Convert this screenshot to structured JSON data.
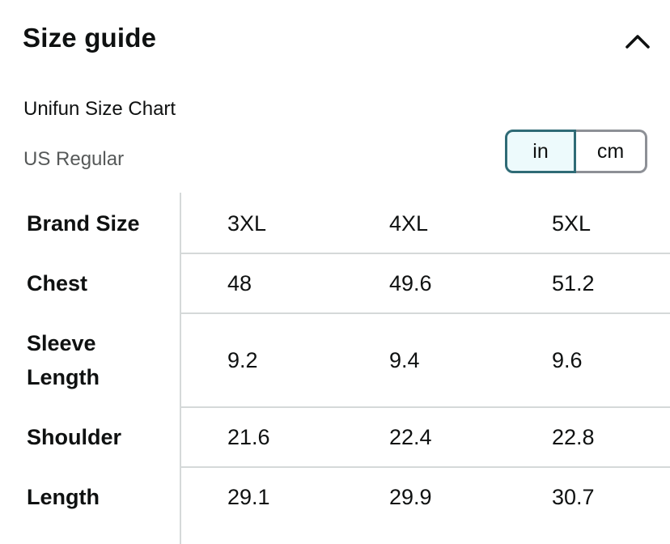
{
  "header": {
    "title": "Size guide"
  },
  "chart": {
    "name": "Unifun Size Chart",
    "region": "US Regular"
  },
  "unit_toggle": {
    "in_label": "in",
    "cm_label": "cm",
    "selected": "in"
  },
  "table": {
    "header_label": "Brand Size",
    "sizes": [
      "3XL",
      "4XL",
      "5XL"
    ],
    "rows": [
      {
        "label": "Chest",
        "values": [
          "48",
          "49.6",
          "51.2"
        ]
      },
      {
        "label": "Sleeve\nLength",
        "values": [
          "9.2",
          "9.4",
          "9.6"
        ]
      },
      {
        "label": "Shoulder",
        "values": [
          "21.6",
          "22.4",
          "22.8"
        ]
      },
      {
        "label": "Length",
        "values": [
          "29.1",
          "29.9",
          "30.7"
        ]
      }
    ]
  },
  "colors": {
    "selected_border": "#2f6b76",
    "selected_fill": "#edfafc",
    "divider": "#d5d9d9"
  }
}
